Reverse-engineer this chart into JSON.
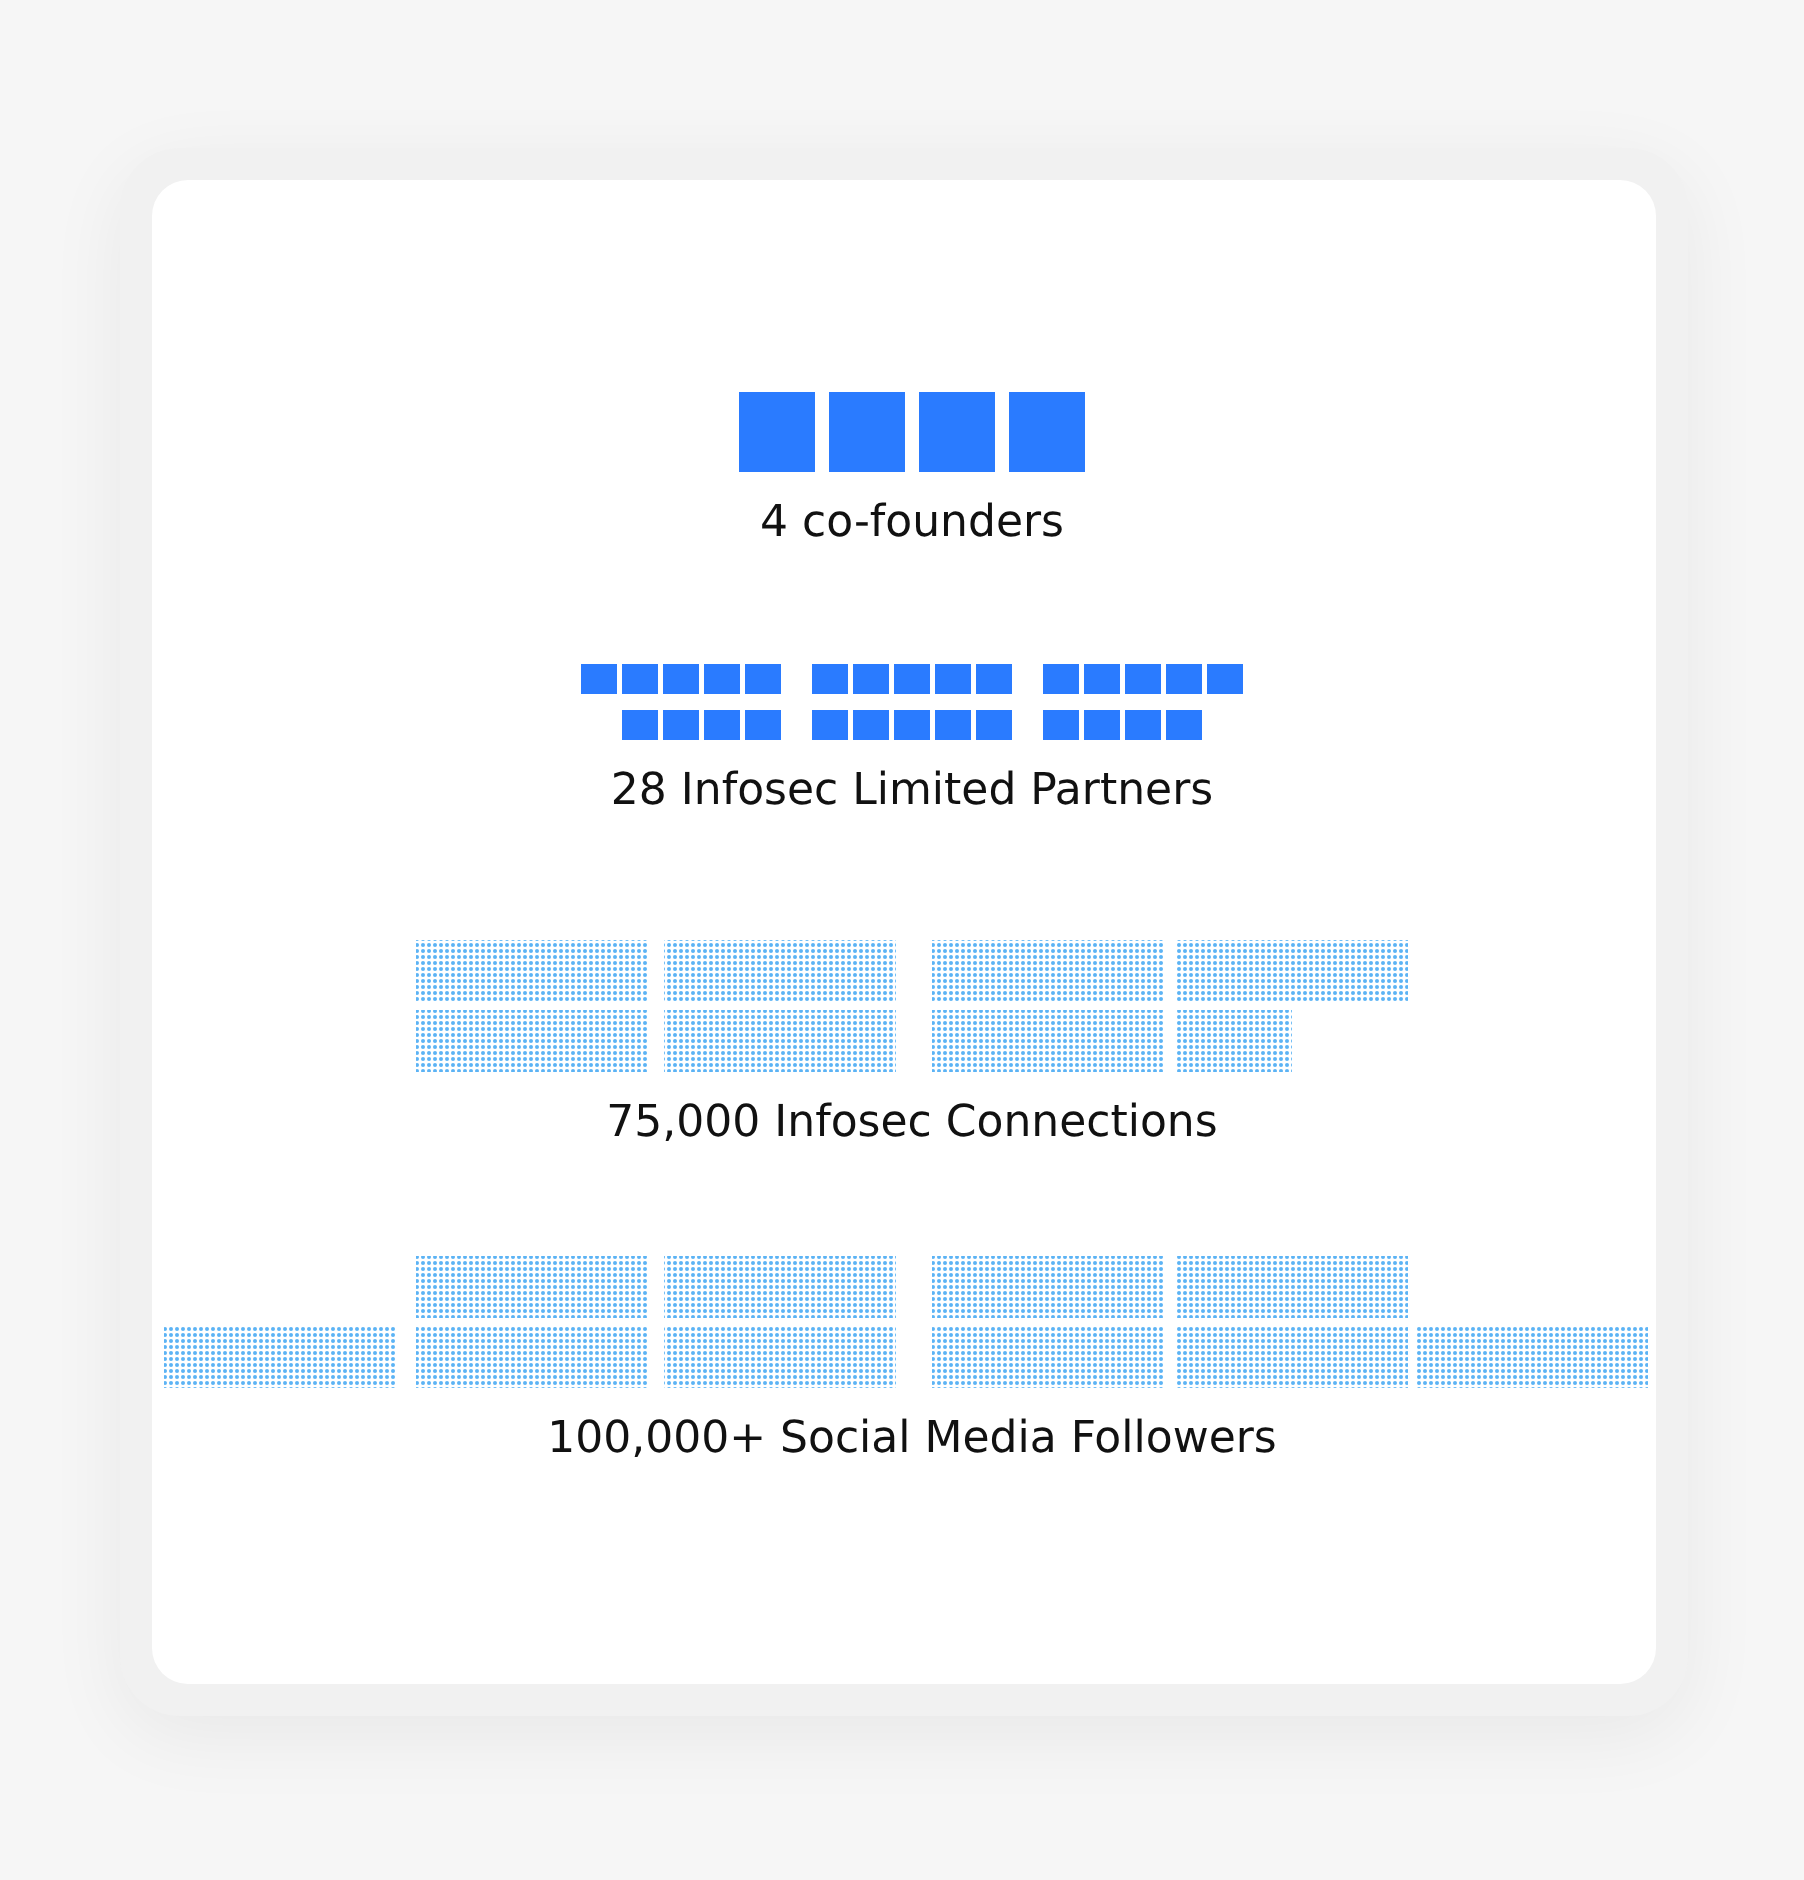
{
  "chart_data": {
    "type": "other",
    "categories": [
      "co-founders",
      "Infosec Limited Partners",
      "Infosec Connections",
      "Social Media Followers"
    ],
    "values": [
      4,
      28,
      75000,
      100000
    ],
    "value_labels": [
      "4",
      "28",
      "75,000",
      "100,000+"
    ],
    "colors": [
      "#2a7bff",
      "#2a7bff",
      "#5cb3f5",
      "#5cb3f5"
    ]
  }
}
